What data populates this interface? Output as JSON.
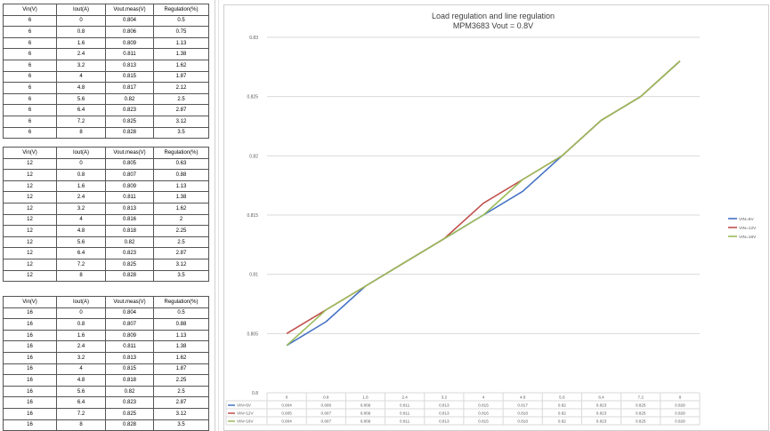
{
  "tables": [
    {
      "headers": [
        "Vin(V)",
        "Iout(A)",
        "Vout.meas(V)",
        "Regulation(%)"
      ],
      "rows": [
        [
          "6",
          "0",
          "0.804",
          "0.5"
        ],
        [
          "6",
          "0.8",
          "0.806",
          "0.75"
        ],
        [
          "6",
          "1.6",
          "0.809",
          "1.13"
        ],
        [
          "6",
          "2.4",
          "0.811",
          "1.38"
        ],
        [
          "6",
          "3.2",
          "0.813",
          "1.62"
        ],
        [
          "6",
          "4",
          "0.815",
          "1.87"
        ],
        [
          "6",
          "4.8",
          "0.817",
          "2.12"
        ],
        [
          "6",
          "5.6",
          "0.82",
          "2.5"
        ],
        [
          "6",
          "6.4",
          "0.823",
          "2.87"
        ],
        [
          "6",
          "7.2",
          "0.825",
          "3.12"
        ],
        [
          "6",
          "8",
          "0.828",
          "3.5"
        ]
      ]
    },
    {
      "headers": [
        "Vin(V)",
        "Iout(A)",
        "Vout.meas(V)",
        "Regulation(%)"
      ],
      "rows": [
        [
          "12",
          "0",
          "0.805",
          "0.63"
        ],
        [
          "12",
          "0.8",
          "0.807",
          "0.88"
        ],
        [
          "12",
          "1.6",
          "0.809",
          "1.13"
        ],
        [
          "12",
          "2.4",
          "0.811",
          "1.38"
        ],
        [
          "12",
          "3.2",
          "0.813",
          "1.62"
        ],
        [
          "12",
          "4",
          "0.816",
          "2"
        ],
        [
          "12",
          "4.8",
          "0.818",
          "2.25"
        ],
        [
          "12",
          "5.6",
          "0.82",
          "2.5"
        ],
        [
          "12",
          "6.4",
          "0.823",
          "2.87"
        ],
        [
          "12",
          "7.2",
          "0.825",
          "3.12"
        ],
        [
          "12",
          "8",
          "0.828",
          "3.5"
        ]
      ]
    },
    {
      "headers": [
        "Vin(V)",
        "Iout(A)",
        "Vout.meas(V)",
        "Regulation(%)"
      ],
      "rows": [
        [
          "16",
          "0",
          "0.804",
          "0.5"
        ],
        [
          "16",
          "0.8",
          "0.807",
          "0.88"
        ],
        [
          "16",
          "1.6",
          "0.809",
          "1.13"
        ],
        [
          "16",
          "2.4",
          "0.811",
          "1.38"
        ],
        [
          "16",
          "3.2",
          "0.813",
          "1.62"
        ],
        [
          "16",
          "4",
          "0.815",
          "1.87"
        ],
        [
          "16",
          "4.8",
          "0.818",
          "2.25"
        ],
        [
          "16",
          "5.6",
          "0.82",
          "2.5"
        ],
        [
          "16",
          "6.4",
          "0.823",
          "2.87"
        ],
        [
          "16",
          "7.2",
          "0.825",
          "3.12"
        ],
        [
          "16",
          "8",
          "0.828",
          "3.5"
        ]
      ]
    }
  ],
  "chart_data": {
    "type": "line",
    "title": "Load regulation and line regulation",
    "subtitle": "MPM3683 Vout = 0.8V",
    "categories": [
      "0",
      "0.8",
      "1.6",
      "2.4",
      "3.2",
      "4",
      "4.8",
      "5.6",
      "6.4",
      "7.2",
      "8"
    ],
    "y_ticks": [
      "0.83",
      "0.825",
      "0.82",
      "0.815",
      "0.81",
      "0.805",
      "0.8"
    ],
    "ylim": [
      0.8,
      0.83
    ],
    "grid": true,
    "legend_position": "right",
    "data_table": true,
    "series": [
      {
        "name": "VIN=6V",
        "color": "#4472c4",
        "values": [
          0.804,
          0.806,
          0.809,
          0.811,
          0.813,
          0.815,
          0.817,
          0.82,
          0.823,
          0.825,
          0.828
        ],
        "labels": [
          "0.804",
          "0.806",
          "0.809",
          "0.811",
          "0.813",
          "0.815",
          "0.817",
          "0.82",
          "0.823",
          "0.825",
          "0.828"
        ]
      },
      {
        "name": "VIN=12V",
        "color": "#c0504d",
        "values": [
          0.805,
          0.807,
          0.809,
          0.811,
          0.813,
          0.816,
          0.818,
          0.82,
          0.823,
          0.825,
          0.828
        ],
        "labels": [
          "0.805",
          "0.807",
          "0.809",
          "0.811",
          "0.813",
          "0.816",
          "0.818",
          "0.82",
          "0.823",
          "0.825",
          "0.828"
        ]
      },
      {
        "name": "VIN=16V",
        "color": "#9bbb59",
        "values": [
          0.804,
          0.807,
          0.809,
          0.811,
          0.813,
          0.815,
          0.818,
          0.82,
          0.823,
          0.825,
          0.828
        ],
        "labels": [
          "0.804",
          "0.807",
          "0.809",
          "0.811",
          "0.813",
          "0.815",
          "0.818",
          "0.82",
          "0.823",
          "0.825",
          "0.828"
        ]
      }
    ]
  }
}
